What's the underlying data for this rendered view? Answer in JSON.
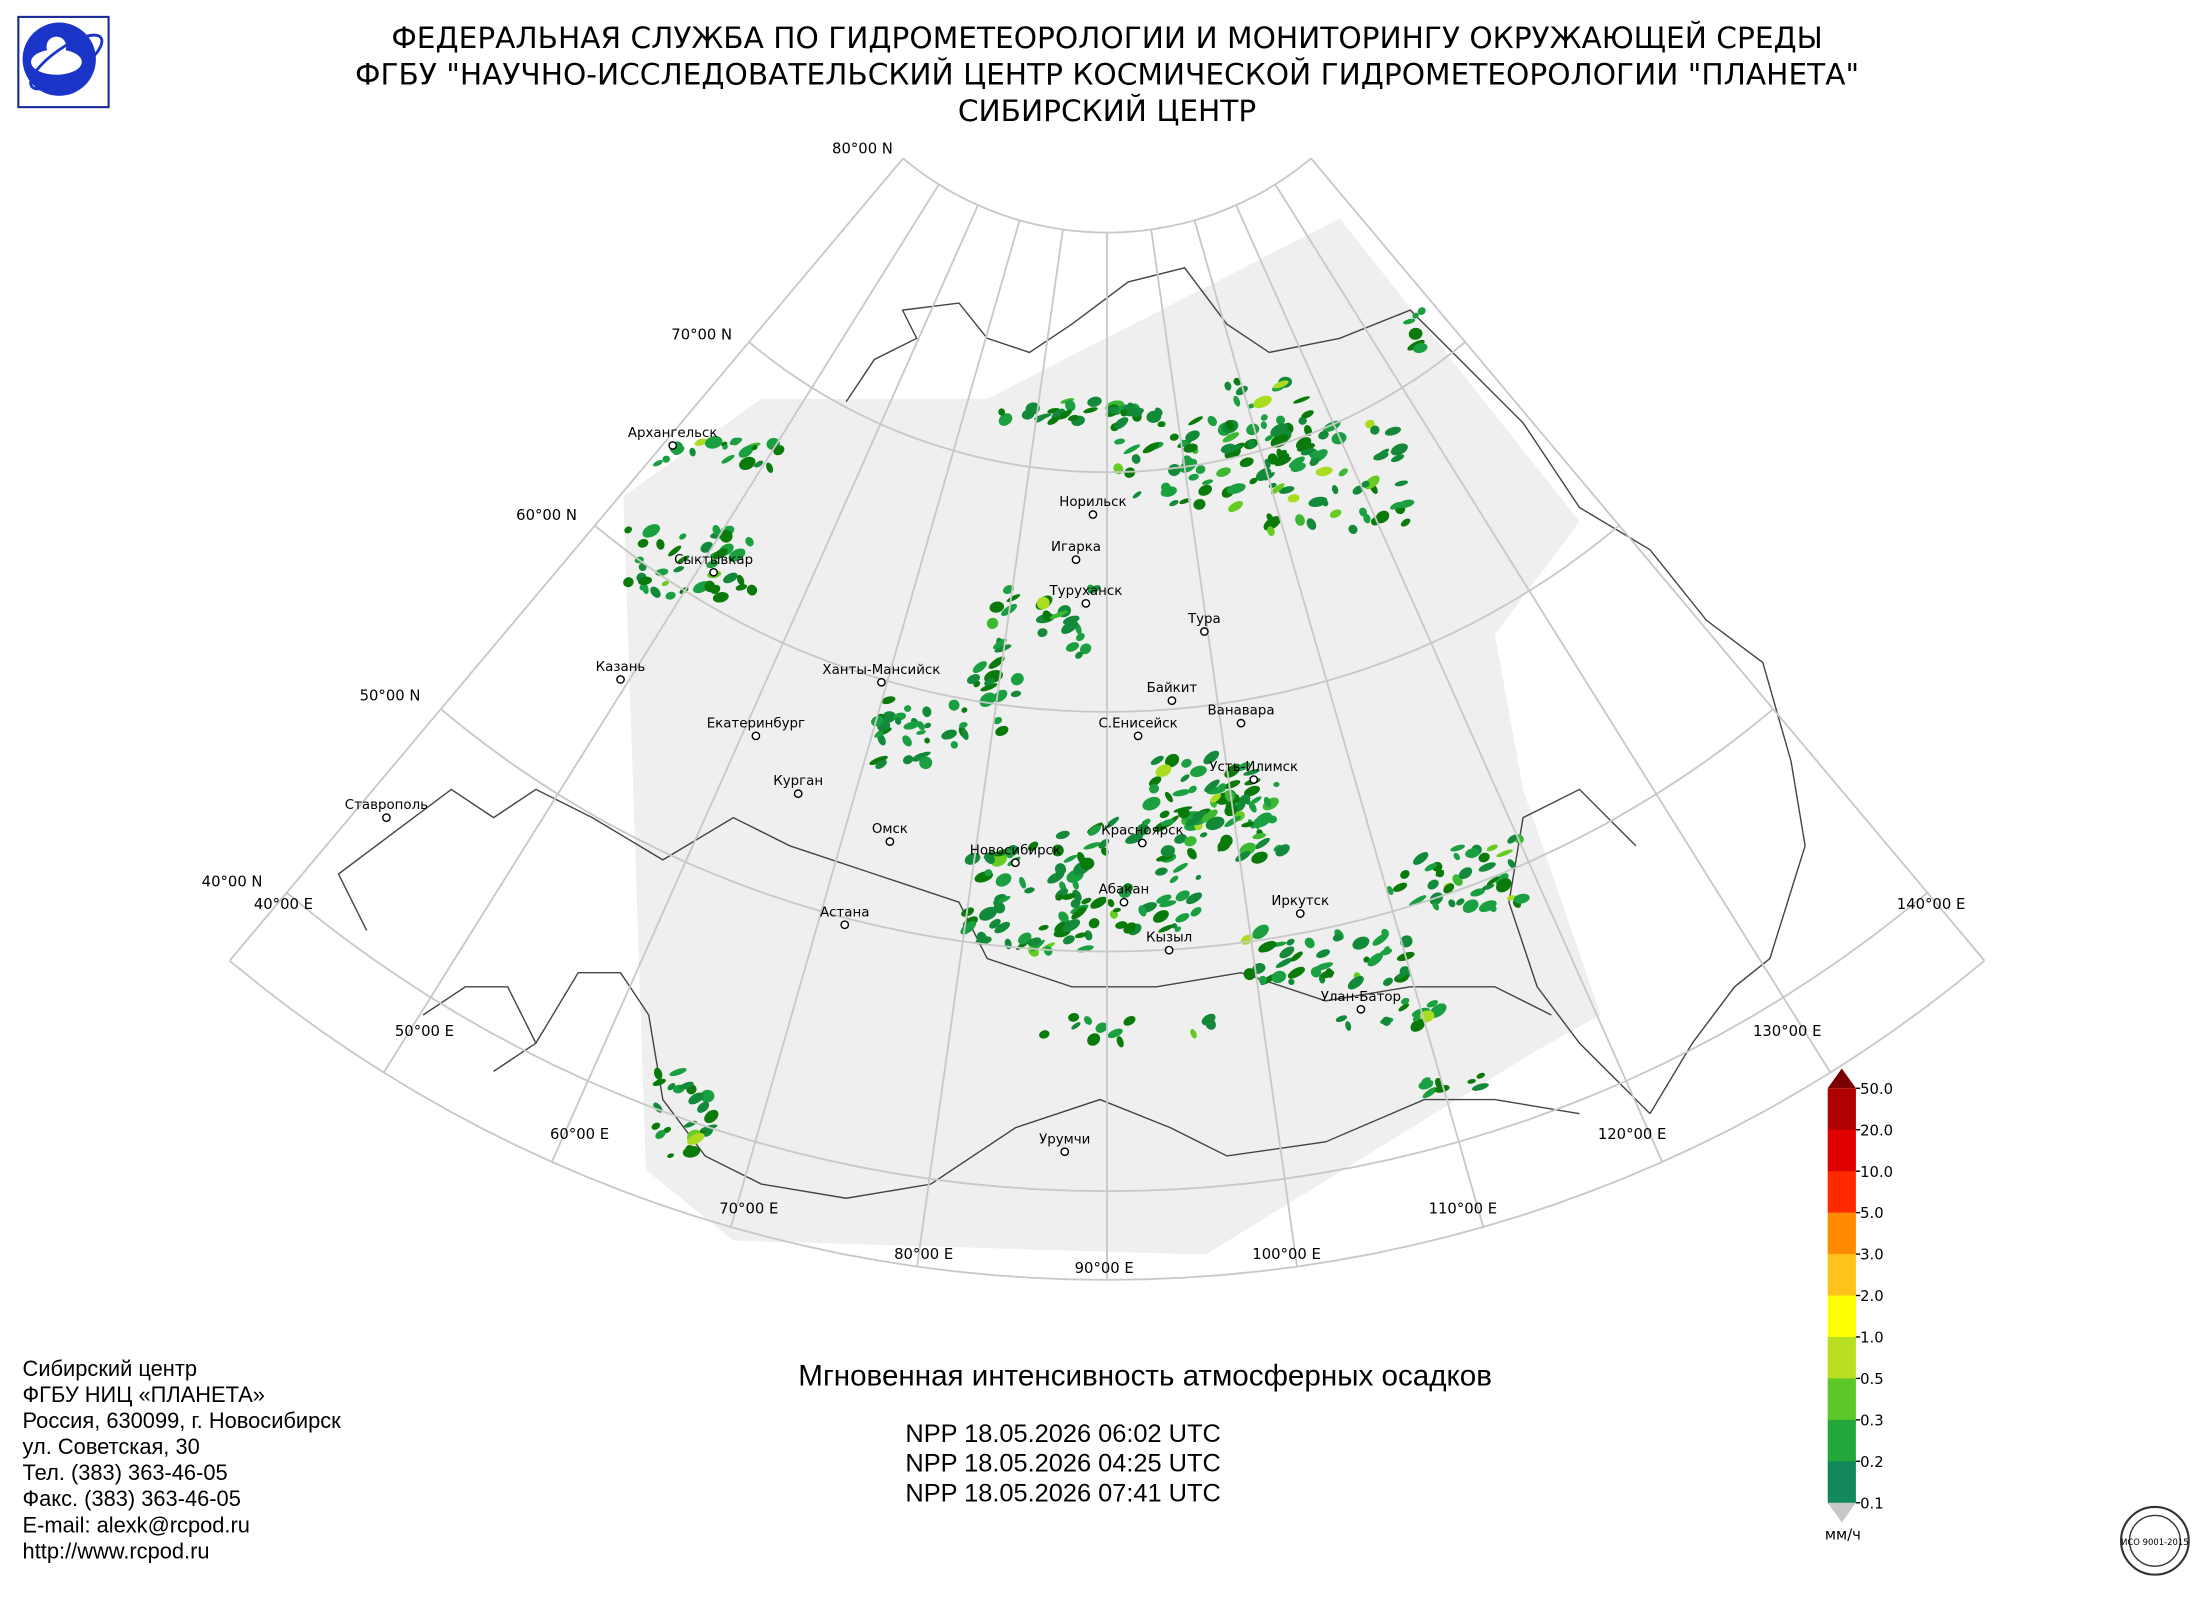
{
  "header": {
    "lines": [
      "ФЕДЕРАЛЬНАЯ СЛУЖБА ПО ГИДРОМЕТЕОРОЛОГИИ И МОНИТОРИНГУ ОКРУЖАЮЩЕЙ СРЕДЫ",
      "ФГБУ \"НАУЧНО-ИССЛЕДОВАТЕЛЬСКИЙ ЦЕНТР КОСМИЧЕСКОЙ ГИДРОМЕТЕОРОЛОГИИ \"ПЛАНЕТА\"",
      "СИБИРСКИЙ ЦЕНТР"
    ]
  },
  "map": {
    "parallel_labels": [
      "80°00 N",
      "70°00 N",
      "60°00 N",
      "50°00 N",
      "40°00 N"
    ],
    "meridian_labels": [
      "40°00 E",
      "50°00 E",
      "60°00 E",
      "70°00 E",
      "80°00 E",
      "90°00 E",
      "100°00 E",
      "110°00 E",
      "120°00 E",
      "130°00 E",
      "140°00 E"
    ],
    "cities": [
      "Архангельск",
      "Сыктывкар",
      "Казань",
      "Екатеринбург",
      "Курган",
      "Ханты-Мансийск",
      "Омск",
      "Новосибирск",
      "Астана",
      "Ставрополь",
      "Норильск",
      "Игарка",
      "Туруханск",
      "Тура",
      "Байкит",
      "Ванавара",
      "С.Енисейск",
      "Усть-Илимск",
      "Красноярск",
      "Абакан",
      "Кызыл",
      "Иркутск",
      "Улан-Батор",
      "Урумчи"
    ]
  },
  "legend": {
    "labels": [
      "50.0",
      "20.0",
      "10.0",
      "5.0",
      "3.0",
      "2.0",
      "1.0",
      "0.5",
      "0.3",
      "0.2",
      "0.1"
    ],
    "unit": "мм/ч"
  },
  "caption": {
    "title": "Мгновенная интенсивность атмосферных осадков",
    "passes": [
      "NPP 18.05.2026  06:02 UTC",
      "NPP 18.05.2026  04:25 UTC",
      "NPP 18.05.2026  07:41 UTC"
    ]
  },
  "contact": {
    "lines": [
      "Сибирский центр",
      "ФГБУ НИЦ «ПЛАНЕТА»",
      "Россия, 630099, г. Новосибирск",
      "ул. Советская, 30",
      "Тел. (383) 363-46-05",
      "Факс. (383) 363-46-05",
      "E-mail: alexk@rcpod.ru",
      "http://www.rcpod.ru"
    ]
  },
  "iso_badge": "ИСО 9001-2015"
}
